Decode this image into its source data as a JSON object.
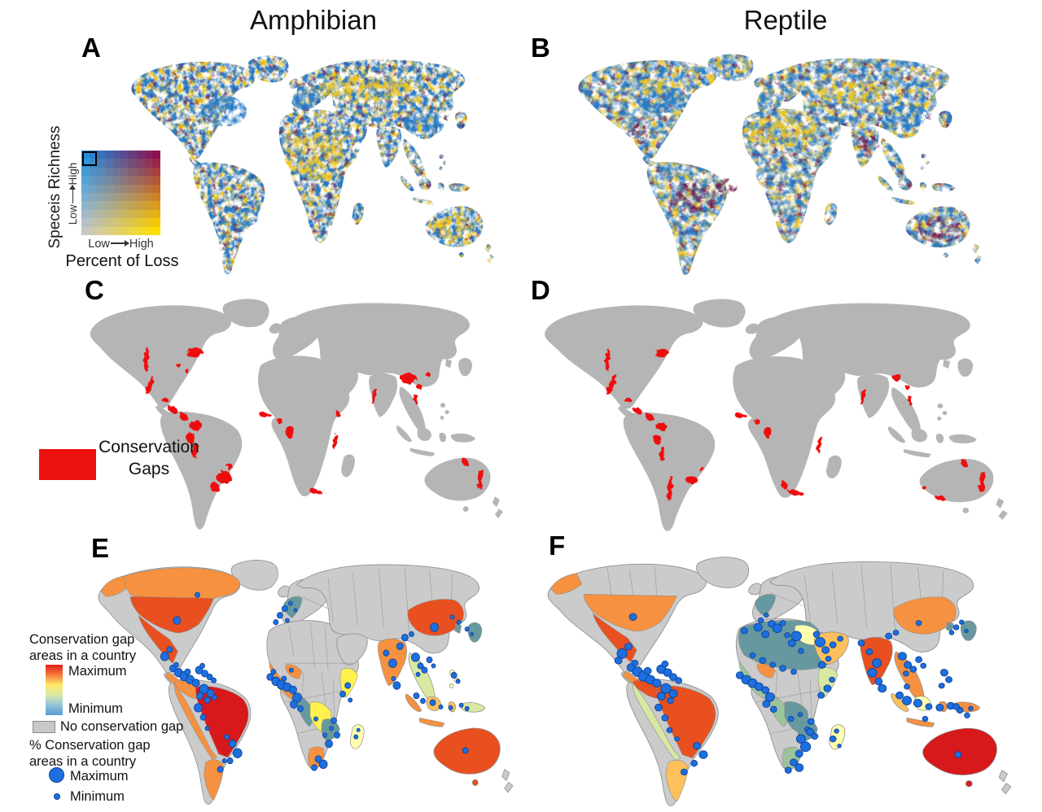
{
  "figure": {
    "col_titles": [
      "Amphibian",
      "Reptile"
    ]
  },
  "panels": {
    "A": {
      "letter": "A"
    },
    "B": {
      "letter": "B"
    },
    "C": {
      "letter": "C",
      "gaps": [
        [
          88,
          94,
          3,
          15,
          4
        ],
        [
          147,
          86,
          9,
          6,
          -15
        ],
        [
          128,
          102,
          3,
          2,
          0
        ],
        [
          137,
          108,
          3,
          2,
          0
        ],
        [
          92,
          127,
          3,
          12,
          18
        ],
        [
          111,
          145,
          4,
          3,
          0
        ],
        [
          120,
          156,
          7,
          4,
          35
        ],
        [
          134,
          166,
          6,
          4,
          30
        ],
        [
          148,
          176,
          8,
          6,
          0
        ],
        [
          142,
          191,
          5,
          7,
          10
        ],
        [
          148,
          207,
          4,
          9,
          10
        ],
        [
          183,
          240,
          9,
          8,
          0
        ],
        [
          172,
          252,
          6,
          5,
          20
        ],
        [
          190,
          227,
          4,
          4,
          0
        ],
        [
          234,
          163,
          8,
          3,
          10
        ],
        [
          252,
          171,
          4,
          3,
          0
        ],
        [
          264,
          184,
          5,
          8,
          0
        ],
        [
          320,
          196,
          3,
          10,
          5
        ],
        [
          323,
          162,
          3,
          3,
          0
        ],
        [
          296,
          258,
          8,
          3,
          15
        ],
        [
          368,
          140,
          2.5,
          11,
          5
        ],
        [
          410,
          118,
          10,
          7,
          0
        ],
        [
          423,
          128,
          4,
          3,
          0
        ],
        [
          433,
          112,
          3,
          3,
          0
        ],
        [
          419,
          143,
          3,
          6,
          0
        ],
        [
          498,
          242,
          3,
          13,
          8
        ],
        [
          479,
          221,
          5,
          3,
          30
        ]
      ]
    },
    "D": {
      "letter": "D",
      "gaps": [
        [
          88,
          94,
          2.5,
          13,
          4
        ],
        [
          147,
          86,
          7,
          5,
          -15
        ],
        [
          92,
          125,
          3,
          14,
          18
        ],
        [
          110,
          144,
          4,
          3,
          0
        ],
        [
          120,
          156,
          6,
          3.5,
          35
        ],
        [
          134,
          165,
          5,
          3.5,
          30
        ],
        [
          146,
          176,
          6,
          5,
          0
        ],
        [
          142,
          192,
          4,
          6,
          10
        ],
        [
          148,
          210,
          3,
          8,
          10
        ],
        [
          156,
          252,
          2.5,
          16,
          5
        ],
        [
          180,
          242,
          6,
          5,
          0
        ],
        [
          190,
          228,
          3,
          3,
          0
        ],
        [
          234,
          163,
          7,
          3,
          10
        ],
        [
          252,
          171,
          4,
          2.5,
          0
        ],
        [
          263,
          183,
          4,
          7,
          0
        ],
        [
          320,
          198,
          2.5,
          11,
          5
        ],
        [
          294,
          258,
          9,
          3,
          12
        ],
        [
          281,
          248,
          3,
          6,
          -20
        ],
        [
          368,
          140,
          2.5,
          11,
          5
        ],
        [
          405,
          116,
          5,
          4,
          0
        ],
        [
          416,
          128,
          3,
          2.5,
          0
        ],
        [
          419,
          144,
          2.5,
          6,
          0
        ],
        [
          498,
          244,
          3,
          13,
          8
        ],
        [
          478,
          221,
          4,
          3,
          30
        ],
        [
          452,
          264,
          5,
          2.5,
          0
        ],
        [
          435,
          252,
          3,
          2,
          0
        ]
      ]
    },
    "E": {
      "letter": "E",
      "circles": [
        [
          115,
          90,
          4.5
        ],
        [
          140,
          60,
          3
        ],
        [
          100,
          132,
          5
        ],
        [
          106,
          124,
          3.5
        ],
        [
          110,
          146,
          4
        ],
        [
          117,
          151,
          5
        ],
        [
          124,
          155,
          5.5
        ],
        [
          131,
          159,
          5
        ],
        [
          138,
          163,
          4.5
        ],
        [
          114,
          142,
          3
        ],
        [
          128,
          150,
          3.5
        ],
        [
          142,
          148,
          4.5
        ],
        [
          149,
          152,
          4
        ],
        [
          155,
          156,
          3.5
        ],
        [
          146,
          143,
          3
        ],
        [
          160,
          160,
          3
        ],
        [
          148,
          170,
          5.5
        ],
        [
          156,
          175,
          4.5
        ],
        [
          143,
          178,
          4
        ],
        [
          152,
          183,
          3.5
        ],
        [
          161,
          180,
          3
        ],
        [
          141,
          192,
          5
        ],
        [
          147,
          203,
          3.5
        ],
        [
          152,
          216,
          2.5
        ],
        [
          183,
          234,
          4.5
        ],
        [
          189,
          245,
          5.5
        ],
        [
          180,
          254,
          3.5
        ],
        [
          176,
          226,
          3
        ],
        [
          168,
          264,
          3.5
        ],
        [
          173,
          254,
          2.5
        ],
        [
          247,
          76,
          3.5
        ],
        [
          241,
          84,
          3.5
        ],
        [
          236,
          92,
          3
        ],
        [
          254,
          70,
          2.5
        ],
        [
          260,
          78,
          2
        ],
        [
          250,
          90,
          2.5
        ],
        [
          229,
          156,
          4
        ],
        [
          236,
          161,
          5
        ],
        [
          243,
          165,
          5.5
        ],
        [
          250,
          168,
          5
        ],
        [
          257,
          171,
          4.5
        ],
        [
          233,
          150,
          3
        ],
        [
          246,
          158,
          3
        ],
        [
          262,
          180,
          5.5
        ],
        [
          258,
          188,
          4.5
        ],
        [
          266,
          193,
          3.5
        ],
        [
          255,
          148,
          2.5
        ],
        [
          324,
          166,
          3.5
        ],
        [
          318,
          176,
          3.5
        ],
        [
          327,
          183,
          2.5
        ],
        [
          285,
          205,
          2.5
        ],
        [
          307,
          207,
          3.5
        ],
        [
          304,
          216,
          2.5
        ],
        [
          311,
          224,
          3.5
        ],
        [
          296,
          224,
          2.5
        ],
        [
          301,
          234,
          4.5
        ],
        [
          288,
          252,
          4
        ],
        [
          294,
          258,
          5
        ],
        [
          283,
          262,
          3.5
        ],
        [
          334,
          226,
          2.5
        ],
        [
          337,
          218,
          2
        ],
        [
          379,
          140,
          5
        ],
        [
          371,
          128,
          3.5
        ],
        [
          388,
          120,
          4
        ],
        [
          384,
          166,
          4.5
        ],
        [
          380,
          158,
          2.5
        ],
        [
          394,
          110,
          4
        ],
        [
          402,
          106,
          3
        ],
        [
          430,
          98,
          5
        ],
        [
          452,
          86,
          2.5
        ],
        [
          407,
          133,
          5
        ],
        [
          413,
          143,
          3.5
        ],
        [
          410,
          153,
          2.5
        ],
        [
          418,
          148,
          3.5
        ],
        [
          424,
          136,
          3.5
        ],
        [
          429,
          143,
          2.5
        ],
        [
          460,
          92,
          2.5
        ],
        [
          470,
          100,
          2.5
        ],
        [
          476,
          106,
          2
        ],
        [
          454,
          154,
          3.5
        ],
        [
          459,
          161,
          2.5
        ],
        [
          408,
          178,
          3.5
        ],
        [
          416,
          184,
          3
        ],
        [
          428,
          186,
          3.5
        ],
        [
          438,
          191,
          2.5
        ],
        [
          450,
          192,
          2.5
        ],
        [
          463,
          189,
          2.5
        ],
        [
          470,
          193,
          2.5
        ],
        [
          468,
          242,
          3.5
        ]
      ]
    },
    "F": {
      "letter": "F",
      "circles": [
        [
          112,
          88,
          4
        ],
        [
          100,
          130,
          5.5
        ],
        [
          107,
          122,
          4
        ],
        [
          96,
          138,
          4
        ],
        [
          110,
          146,
          4.5
        ],
        [
          117,
          151,
          5.5
        ],
        [
          124,
          156,
          6
        ],
        [
          131,
          160,
          5
        ],
        [
          138,
          164,
          4.5
        ],
        [
          114,
          141,
          3.5
        ],
        [
          128,
          150,
          4
        ],
        [
          143,
          148,
          5
        ],
        [
          150,
          152,
          4.5
        ],
        [
          156,
          157,
          4
        ],
        [
          147,
          142,
          3.5
        ],
        [
          162,
          161,
          3.5
        ],
        [
          148,
          170,
          5.5
        ],
        [
          156,
          176,
          4.5
        ],
        [
          143,
          179,
          4.5
        ],
        [
          153,
          184,
          3.5
        ],
        [
          140,
          192,
          4
        ],
        [
          147,
          204,
          3.5
        ],
        [
          152,
          218,
          3
        ],
        [
          160,
          228,
          2.5
        ],
        [
          182,
          236,
          4
        ],
        [
          189,
          246,
          4.5
        ],
        [
          179,
          256,
          3.5
        ],
        [
          168,
          266,
          3.5
        ],
        [
          252,
          92,
          3
        ],
        [
          258,
          86,
          2.5
        ],
        [
          264,
          96,
          4
        ],
        [
          270,
          101,
          5
        ],
        [
          276,
          95,
          3
        ],
        [
          234,
          104,
          3.5
        ],
        [
          249,
          100,
          4.5
        ],
        [
          257,
          108,
          4
        ],
        [
          281,
          109,
          3
        ],
        [
          291,
          110,
          5.5
        ],
        [
          286,
          118,
          4
        ],
        [
          296,
          127,
          3
        ],
        [
          313,
          108,
          3.5
        ],
        [
          317,
          117,
          5.5
        ],
        [
          323,
          126,
          4
        ],
        [
          331,
          120,
          3.5
        ],
        [
          339,
          113,
          3
        ],
        [
          326,
          136,
          3
        ],
        [
          319,
          143,
          4
        ],
        [
          243,
          132,
          3
        ],
        [
          254,
          138,
          3.5
        ],
        [
          265,
          143,
          3
        ],
        [
          276,
          147,
          3.5
        ],
        [
          288,
          151,
          3
        ],
        [
          229,
          155,
          4
        ],
        [
          236,
          160,
          5
        ],
        [
          243,
          164,
          5
        ],
        [
          250,
          168,
          4.5
        ],
        [
          257,
          172,
          4
        ],
        [
          262,
          180,
          5
        ],
        [
          258,
          188,
          4
        ],
        [
          266,
          194,
          3.5
        ],
        [
          330,
          160,
          3
        ],
        [
          325,
          170,
          4
        ],
        [
          318,
          178,
          3.5
        ],
        [
          285,
          205,
          3
        ],
        [
          295,
          200,
          2.5
        ],
        [
          307,
          208,
          3.5
        ],
        [
          303,
          217,
          3
        ],
        [
          311,
          225,
          3.5
        ],
        [
          296,
          228,
          5
        ],
        [
          301,
          237,
          5.5
        ],
        [
          294,
          245,
          4
        ],
        [
          306,
          220,
          4
        ],
        [
          288,
          255,
          4
        ],
        [
          294,
          261,
          4.5
        ],
        [
          282,
          264,
          3.5
        ],
        [
          331,
          228,
          3.5
        ],
        [
          335,
          219,
          2.5
        ],
        [
          338,
          236,
          2
        ],
        [
          362,
          118,
          3.5
        ],
        [
          371,
          128,
          3.5
        ],
        [
          379,
          141,
          5
        ],
        [
          374,
          152,
          5
        ],
        [
          381,
          162,
          4
        ],
        [
          385,
          170,
          4.5
        ],
        [
          392,
          110,
          3.5
        ],
        [
          400,
          106,
          3
        ],
        [
          425,
          95,
          3
        ],
        [
          407,
          133,
          4.5
        ],
        [
          413,
          143,
          4
        ],
        [
          411,
          153,
          3
        ],
        [
          419,
          148,
          3.5
        ],
        [
          425,
          137,
          3.5
        ],
        [
          430,
          144,
          3
        ],
        [
          466,
          100,
          3
        ],
        [
          472,
          94,
          2.5
        ],
        [
          461,
          106,
          2.5
        ],
        [
          477,
          104,
          2
        ],
        [
          453,
          152,
          4
        ],
        [
          458,
          160,
          3.5
        ],
        [
          450,
          167,
          3
        ],
        [
          404,
          178,
          4
        ],
        [
          412,
          184,
          5
        ],
        [
          424,
          187,
          4.5
        ],
        [
          436,
          191,
          3.5
        ],
        [
          448,
          192,
          4
        ],
        [
          460,
          190,
          4
        ],
        [
          470,
          195,
          3.5
        ],
        [
          478,
          201,
          3
        ],
        [
          412,
          168,
          3
        ],
        [
          432,
          205,
          3
        ],
        [
          466,
          191,
          3.5
        ],
        [
          482,
          193,
          2.5
        ],
        [
          468,
          246,
          3.5
        ]
      ]
    }
  },
  "bivariate_legend": {
    "y_label": "Speceis Richness",
    "x_label": "Percent of Loss",
    "axis_low": "Low",
    "axis_high": "High",
    "corner_colors": {
      "top_left": "#1d8fdd",
      "top_right": "#8f1150",
      "bottom_left": "#c9c6c3",
      "bottom_right": "#ffdf00"
    }
  },
  "gap_legend": {
    "line1": "Conservation",
    "line2": "Gaps"
  },
  "country_legend": {
    "title1": "Conservation gap",
    "title2": "areas in a country",
    "max": "Maximum",
    "min": "Minimum",
    "no_gap": "No conservation gap",
    "pct1": "% Conservation gap",
    "pct2": "areas in a country",
    "pct_max": "Maximum",
    "pct_min": "Minimum",
    "gradient": [
      "#e01f1f",
      "#f57b38",
      "#fde968",
      "#d9e9a8",
      "#8fc3dc",
      "#5b9bd0"
    ]
  },
  "colors": {
    "gap_red": "#ee1111",
    "circle_blue": "#1d6fe0",
    "circle_edge": "#0c4094",
    "land_cd": "#b5b5b5",
    "land_ef": "#cbcbcb",
    "no_gap": "#c8c8c8",
    "border": "#8f8f8f",
    "max": "#d7191c",
    "hot": "#e8501f",
    "orange": "#f59140",
    "yellow_orange": "#fdc05c",
    "yellow": "#fff24d",
    "pale_yellow": "#ffffb0",
    "yellow_green": "#d7e8a0",
    "green": "#9cc49a",
    "teal": "#66999f",
    "speckle_blue": "#2b7dc7",
    "speckle_yellow": "#edc41c",
    "speckle_maroon": "#77204d"
  }
}
